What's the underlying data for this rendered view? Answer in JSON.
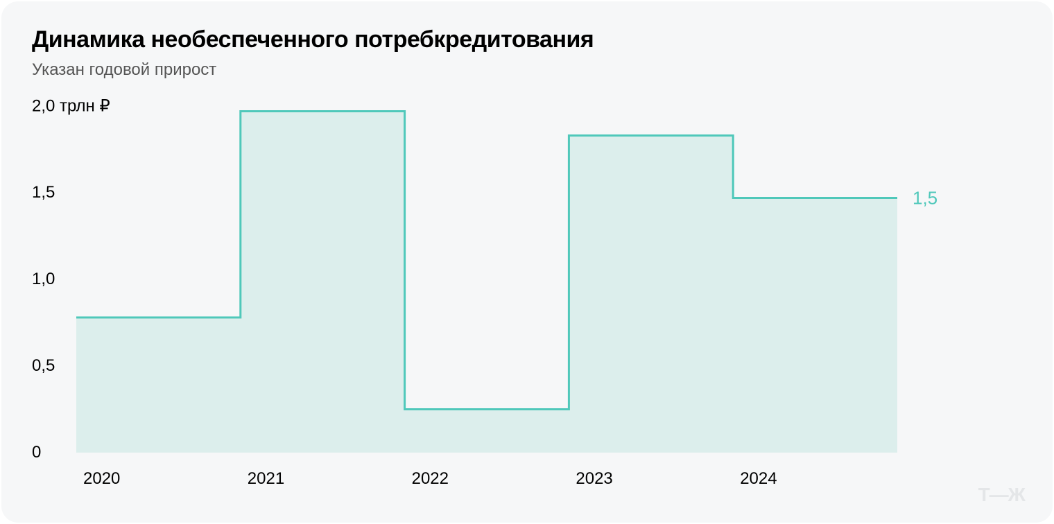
{
  "title": "Динамика необеспеченного потребкредитования",
  "subtitle": "Указан годовой прирост",
  "chart": {
    "type": "step-area",
    "categories": [
      "2020",
      "2021",
      "2022",
      "2023",
      "2024"
    ],
    "values": [
      0.78,
      1.97,
      0.25,
      1.83,
      1.47
    ],
    "ylim": [
      0,
      2.0
    ],
    "yticks": [
      {
        "v": 0,
        "label": "0"
      },
      {
        "v": 0.5,
        "label": "0,5"
      },
      {
        "v": 1.0,
        "label": "1,0"
      },
      {
        "v": 1.5,
        "label": "1,5"
      },
      {
        "v": 2.0,
        "label": "2,0 трлн ₽"
      }
    ],
    "fill_color": "#dceeec",
    "stroke_color": "#4fc8ba",
    "stroke_width": 3,
    "end_label": "1,5",
    "end_label_color": "#4fc8ba",
    "background_color": "#f6f7f8"
  },
  "watermark": "Т—Ж"
}
